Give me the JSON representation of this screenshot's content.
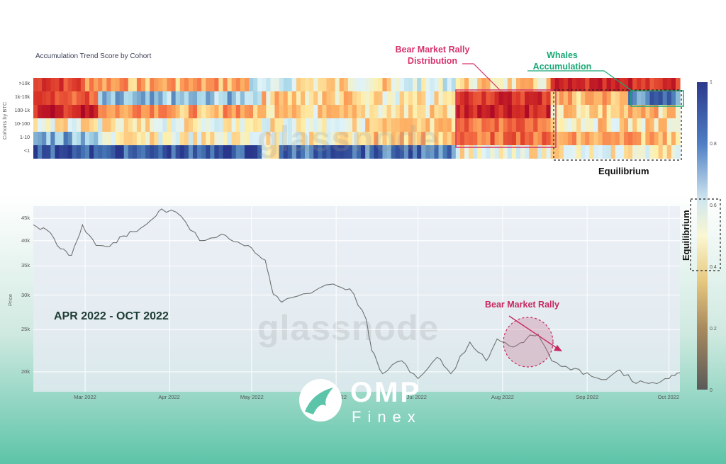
{
  "chart_data": [
    {
      "type": "heatmap",
      "title": "Accumulation Trend Score by Cohort",
      "ylabel": "Cohorts by BTC",
      "rows": [
        ">10k",
        "1k-10k",
        "100-1k",
        "10-100",
        "1-10",
        "<1"
      ],
      "x_range": [
        "2022-02-10",
        "2022-10-05"
      ],
      "colorscale": "RdYlBu",
      "zlim": [
        0,
        1
      ],
      "colorbar_ticks": [
        "1",
        "0.8",
        "0.6",
        "0.4",
        "0.2",
        "0"
      ],
      "annotations": [
        {
          "text_line1": "Bear Market Rally",
          "text_line2": "Distribution",
          "color": "#d6336c"
        },
        {
          "text_line1": "Whales",
          "text_line2": "Accumulation",
          "color": "#19a974"
        },
        {
          "text": "Equilibrium",
          "color": "#111111"
        }
      ]
    },
    {
      "type": "line",
      "ylabel": "Price",
      "x_ticks": [
        "Mar 2022",
        "Apr 2022",
        "May 2022",
        "Jun 2022",
        "Jul 2022",
        "Aug 2022",
        "Sep 2022",
        "Oct 2022"
      ],
      "y_ticks": [
        "45k",
        "40k",
        "35k",
        "30k",
        "25k",
        "20k"
      ],
      "ylim": [
        18000,
        48000
      ],
      "x": [
        "2022-02-10",
        "2022-02-15",
        "2022-02-20",
        "2022-02-24",
        "2022-02-28",
        "2022-03-05",
        "2022-03-10",
        "2022-03-15",
        "2022-03-20",
        "2022-03-25",
        "2022-03-29",
        "2022-04-05",
        "2022-04-12",
        "2022-04-20",
        "2022-04-26",
        "2022-05-01",
        "2022-05-06",
        "2022-05-09",
        "2022-05-12",
        "2022-05-20",
        "2022-05-31",
        "2022-06-06",
        "2022-06-12",
        "2022-06-14",
        "2022-06-18",
        "2022-06-25",
        "2022-07-01",
        "2022-07-08",
        "2022-07-13",
        "2022-07-20",
        "2022-07-26",
        "2022-07-30",
        "2022-08-05",
        "2022-08-10",
        "2022-08-14",
        "2022-08-19",
        "2022-08-26",
        "2022-09-01",
        "2022-09-08",
        "2022-09-13",
        "2022-09-19",
        "2022-09-25",
        "2022-10-01",
        "2022-10-05"
      ],
      "y": [
        43500,
        42300,
        38300,
        37000,
        43500,
        39000,
        38800,
        41000,
        42000,
        44500,
        47300,
        45600,
        40000,
        41400,
        39700,
        38500,
        36100,
        30100,
        28900,
        30200,
        31800,
        31000,
        26400,
        22400,
        19800,
        21200,
        19300,
        21600,
        19800,
        23400,
        21200,
        23800,
        22800,
        23900,
        24400,
        21200,
        20200,
        19900,
        19200,
        20200,
        18800,
        18900,
        19300,
        19900
      ],
      "watermark": "glassnode",
      "period_label": "APR 2022 - OCT 2022",
      "rally_annotation": "Bear Market Rally"
    }
  ],
  "equilibrium_label": "Equilibrium",
  "logo": {
    "brand": "OMP",
    "sub": "Finex"
  }
}
